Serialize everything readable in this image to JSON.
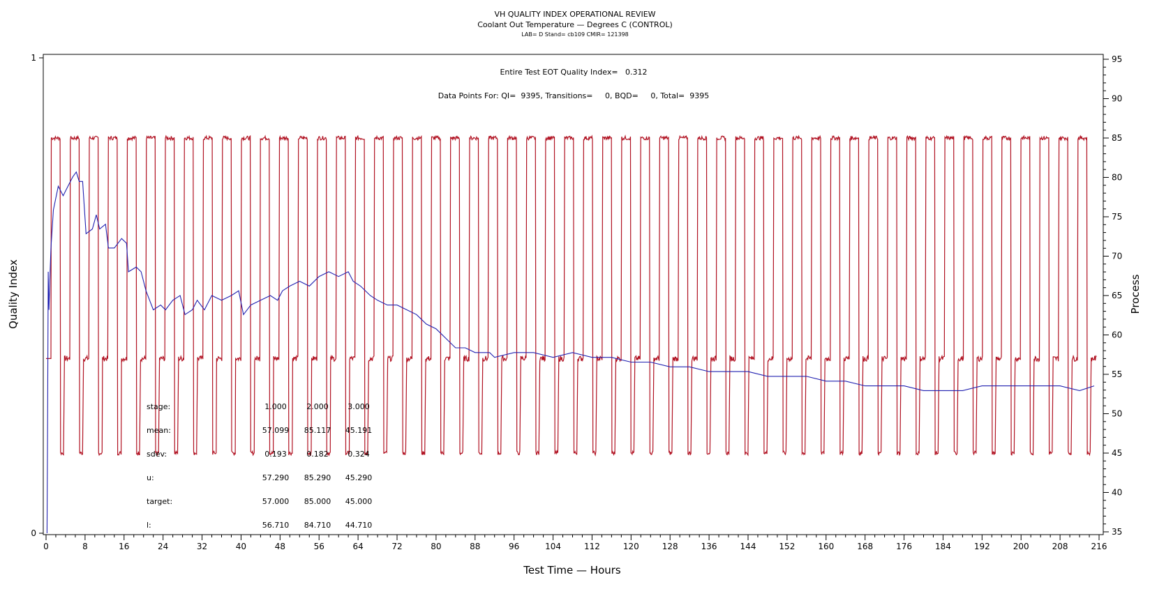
{
  "chart_data": {
    "type": "line",
    "title": "VH QUALITY INDEX OPERATIONAL REVIEW",
    "subtitle": "Coolant Out Temperature — Degrees C (CONTROL)",
    "subtitle2": "LAB= D Stand= cb109 CMIR= 121398",
    "xlabel": "Test Time — Hours",
    "ylabel_left": "Quality Index",
    "ylabel_right": "Process",
    "xlim": [
      0,
      216
    ],
    "ylim_left": [
      0,
      1
    ],
    "ylim_right": [
      35,
      95
    ],
    "x_ticks": [
      0,
      8,
      16,
      24,
      32,
      40,
      48,
      56,
      64,
      72,
      80,
      88,
      96,
      104,
      112,
      120,
      128,
      136,
      144,
      152,
      160,
      168,
      176,
      184,
      192,
      200,
      208,
      216
    ],
    "y_left_ticks": [
      "0",
      "1"
    ],
    "y_right_ticks": [
      35,
      40,
      45,
      50,
      55,
      60,
      65,
      70,
      75,
      80,
      85,
      90,
      95
    ],
    "annotations": {
      "quality_index": "Entire Test EOT Quality Index=   0.312",
      "data_points": "Data Points For: QI=  9395, Transitions=     0, BQD=     0, Total=  9395"
    },
    "stats_table": {
      "rows": [
        {
          "label": "stage:",
          "values": [
            "1.000",
            "2.000",
            "3.000"
          ]
        },
        {
          "label": "mean:",
          "values": [
            "57.099",
            "85.117",
            "45.191"
          ]
        },
        {
          "label": "sdev:",
          "values": [
            "0.193",
            "0.182",
            "0.324"
          ]
        },
        {
          "label": "u:",
          "values": [
            "57.290",
            "85.290",
            "45.290"
          ]
        },
        {
          "label": "target:",
          "values": [
            "57.000",
            "85.000",
            "45.000"
          ]
        },
        {
          "label": "l:",
          "values": [
            "56.710",
            "84.710",
            "44.710"
          ]
        }
      ]
    },
    "series": [
      {
        "name": "Process",
        "axis": "right",
        "color": "#b01020",
        "cycle": {
          "start_hour": 1.0,
          "period_hours": 4.05,
          "levels": [
            {
              "stage": "2",
              "value": 85,
              "hours": 1.9
            },
            {
              "stage": "3",
              "value": 45,
              "hours": 0.8
            },
            {
              "stage": "1",
              "value": 57,
              "hours": 1.2
            }
          ]
        }
      },
      {
        "name": "Quality Index",
        "axis": "left",
        "color": "#2020b0",
        "points": [
          [
            0.2,
            0
          ],
          [
            0.3,
            0.2
          ],
          [
            0.45,
            0.55
          ],
          [
            0.6,
            0.47
          ],
          [
            0.8,
            0.54
          ],
          [
            1.0,
            0.6
          ],
          [
            1.5,
            0.68
          ],
          [
            2.5,
            0.73
          ],
          [
            3.5,
            0.71
          ],
          [
            4.5,
            0.73
          ],
          [
            5.5,
            0.75
          ],
          [
            6.2,
            0.76
          ],
          [
            6.8,
            0.74
          ],
          [
            7.5,
            0.74
          ],
          [
            8.2,
            0.63
          ],
          [
            9.5,
            0.64
          ],
          [
            10.3,
            0.67
          ],
          [
            11.0,
            0.64
          ],
          [
            12.2,
            0.65
          ],
          [
            12.8,
            0.6
          ],
          [
            14.0,
            0.6
          ],
          [
            15.5,
            0.62
          ],
          [
            16.5,
            0.61
          ],
          [
            16.9,
            0.55
          ],
          [
            18.5,
            0.56
          ],
          [
            19.5,
            0.55
          ],
          [
            20.5,
            0.51
          ],
          [
            22.0,
            0.47
          ],
          [
            23.5,
            0.48
          ],
          [
            24.5,
            0.47
          ],
          [
            26.0,
            0.49
          ],
          [
            27.5,
            0.5
          ],
          [
            28.5,
            0.46
          ],
          [
            30.0,
            0.47
          ],
          [
            31.0,
            0.49
          ],
          [
            32.5,
            0.47
          ],
          [
            34.0,
            0.5
          ],
          [
            36.0,
            0.49
          ],
          [
            38.0,
            0.5
          ],
          [
            39.5,
            0.51
          ],
          [
            40.5,
            0.46
          ],
          [
            42.0,
            0.48
          ],
          [
            44.0,
            0.49
          ],
          [
            46.0,
            0.5
          ],
          [
            47.5,
            0.49
          ],
          [
            48.5,
            0.51
          ],
          [
            50.0,
            0.52
          ],
          [
            52.0,
            0.53
          ],
          [
            54.0,
            0.52
          ],
          [
            56.0,
            0.54
          ],
          [
            58.0,
            0.55
          ],
          [
            60.0,
            0.54
          ],
          [
            62.0,
            0.55
          ],
          [
            63.0,
            0.53
          ],
          [
            64.5,
            0.52
          ],
          [
            66.5,
            0.5
          ],
          [
            68.0,
            0.49
          ],
          [
            70.0,
            0.48
          ],
          [
            72.0,
            0.48
          ],
          [
            74.0,
            0.47
          ],
          [
            76.0,
            0.46
          ],
          [
            78.0,
            0.44
          ],
          [
            80.0,
            0.43
          ],
          [
            82.0,
            0.41
          ],
          [
            84.0,
            0.39
          ],
          [
            86.0,
            0.39
          ],
          [
            88.0,
            0.38
          ],
          [
            91.0,
            0.38
          ],
          [
            92.0,
            0.37
          ],
          [
            96.0,
            0.38
          ],
          [
            100.0,
            0.38
          ],
          [
            104.0,
            0.37
          ],
          [
            108.0,
            0.38
          ],
          [
            112.0,
            0.37
          ],
          [
            116.0,
            0.37
          ],
          [
            120.0,
            0.36
          ],
          [
            124.0,
            0.36
          ],
          [
            128.0,
            0.35
          ],
          [
            132.0,
            0.35
          ],
          [
            136.0,
            0.34
          ],
          [
            140.0,
            0.34
          ],
          [
            144.0,
            0.34
          ],
          [
            148.0,
            0.33
          ],
          [
            152.0,
            0.33
          ],
          [
            156.0,
            0.33
          ],
          [
            160.0,
            0.32
          ],
          [
            164.0,
            0.32
          ],
          [
            168.0,
            0.31
          ],
          [
            172.0,
            0.31
          ],
          [
            176.0,
            0.31
          ],
          [
            180.0,
            0.3
          ],
          [
            184.0,
            0.3
          ],
          [
            188.0,
            0.3
          ],
          [
            192.0,
            0.31
          ],
          [
            196.0,
            0.31
          ],
          [
            200.0,
            0.31
          ],
          [
            204.0,
            0.31
          ],
          [
            208.0,
            0.31
          ],
          [
            212.0,
            0.3
          ],
          [
            215.0,
            0.31
          ]
        ]
      }
    ]
  }
}
